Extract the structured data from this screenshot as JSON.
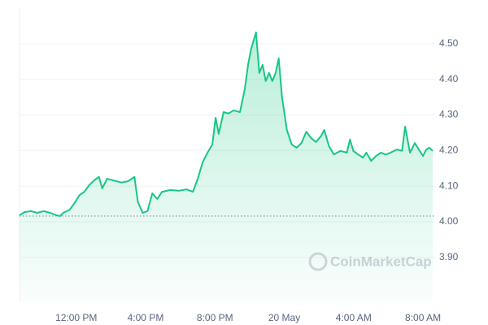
{
  "chart_data": {
    "type": "line",
    "x": [
      8.73,
      9.01,
      9.38,
      9.76,
      10.13,
      10.5,
      10.88,
      11.07,
      11.25,
      11.63,
      11.91,
      12.19,
      12.47,
      12.75,
      13.03,
      13.31,
      13.5,
      13.78,
      14.15,
      14.62,
      14.99,
      15.36,
      15.55,
      15.83,
      16.11,
      16.39,
      16.67,
      16.95,
      17.42,
      17.89,
      18.36,
      18.73,
      19.01,
      19.29,
      19.57,
      19.85,
      20.04,
      20.22,
      20.5,
      20.79,
      21.07,
      21.44,
      21.72,
      21.91,
      22.09,
      22.37,
      22.56,
      22.75,
      22.93,
      23.12,
      23.31,
      23.5,
      23.68,
      23.87,
      24.15,
      24.43,
      24.71,
      24.99,
      25.27,
      25.55,
      25.83,
      26.11,
      26.3,
      26.58,
      26.86,
      27.23,
      27.61,
      27.79,
      27.98,
      28.26,
      28.54,
      28.73,
      29.01,
      29.29,
      29.57,
      29.85,
      30.13,
      30.5,
      30.79,
      30.97,
      31.25,
      31.53,
      31.81,
      32.0,
      32.19,
      32.37,
      32.56
    ],
    "series": [
      {
        "color": "#16c784",
        "values": [
          4.018,
          4.027,
          4.03,
          4.025,
          4.03,
          4.025,
          4.018,
          4.016,
          4.025,
          4.034,
          4.053,
          4.075,
          4.084,
          4.103,
          4.116,
          4.126,
          4.094,
          4.121,
          4.116,
          4.11,
          4.114,
          4.126,
          4.057,
          4.025,
          4.03,
          4.08,
          4.064,
          4.084,
          4.089,
          4.087,
          4.091,
          4.084,
          4.121,
          4.167,
          4.194,
          4.217,
          4.292,
          4.247,
          4.308,
          4.304,
          4.313,
          4.308,
          4.372,
          4.441,
          4.486,
          4.532,
          4.418,
          4.441,
          4.395,
          4.418,
          4.395,
          4.418,
          4.459,
          4.349,
          4.258,
          4.217,
          4.208,
          4.221,
          4.253,
          4.235,
          4.224,
          4.24,
          4.258,
          4.212,
          4.189,
          4.199,
          4.194,
          4.231,
          4.199,
          4.189,
          4.18,
          4.194,
          4.171,
          4.185,
          4.194,
          4.189,
          4.194,
          4.203,
          4.199,
          4.267,
          4.194,
          4.221,
          4.199,
          4.185,
          4.203,
          4.208,
          4.199
        ]
      }
    ],
    "reference": 4.016,
    "xlim": [
      8.73,
      32.7
    ],
    "xticks": [
      {
        "value": 12,
        "label": "12:00 PM"
      },
      {
        "value": 16,
        "label": "4:00 PM"
      },
      {
        "value": 20,
        "label": "8:00 PM"
      },
      {
        "value": 24,
        "label": "20 May"
      },
      {
        "value": 28,
        "label": "4:00 AM"
      },
      {
        "value": 32,
        "label": "8:00 AM"
      }
    ],
    "ylim": [
      3.774,
      4.6
    ],
    "yticks": [
      {
        "value": 3.9,
        "label": "3.90"
      },
      {
        "value": 4.0,
        "label": "4.00"
      },
      {
        "value": 4.1,
        "label": "4.10"
      },
      {
        "value": 4.2,
        "label": "4.20"
      },
      {
        "value": 4.3,
        "label": "4.30"
      },
      {
        "value": 4.4,
        "label": "4.40"
      },
      {
        "value": 4.5,
        "label": "4.50"
      }
    ],
    "grid": true,
    "watermark": "CoinMarketCap"
  }
}
